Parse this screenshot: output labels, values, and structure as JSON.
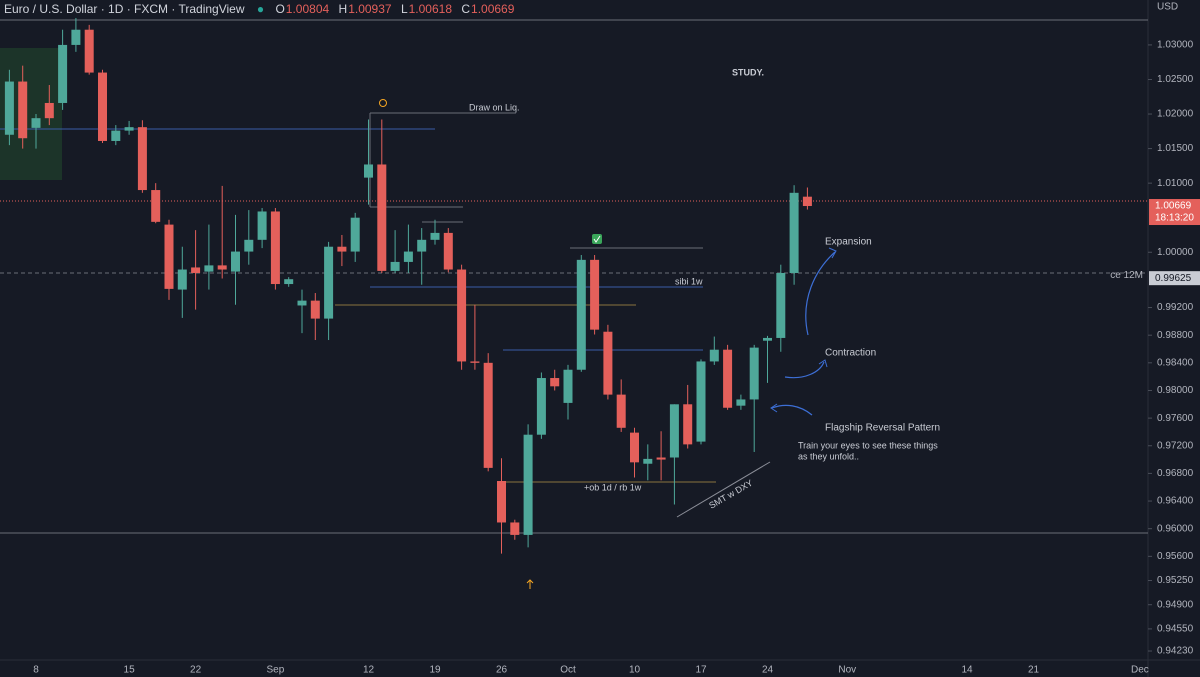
{
  "chart_data": {
    "type": "candlestick",
    "title": "Euro / U.S. Dollar · 1D · FXCM · TradingView",
    "ohlc_labels": [
      "O",
      "H",
      "L",
      "C"
    ],
    "currency": "USD",
    "countdown": "18:13:20",
    "up_color": "#4fa89a",
    "down_color": "#e4605b",
    "categories": [
      null,
      null,
      "8",
      null,
      null,
      null,
      null,
      null,
      null,
      "15",
      null,
      null,
      null,
      null,
      "22",
      null,
      null,
      null,
      null,
      null,
      "Sep",
      null,
      null,
      null,
      null,
      null,
      null,
      "12",
      null,
      null,
      null,
      null,
      "19",
      null,
      null,
      null,
      null,
      "26",
      null,
      null,
      null,
      null,
      "Oct",
      null,
      null,
      null,
      null,
      "10",
      null,
      null,
      null,
      null,
      "17",
      null,
      null,
      null,
      null,
      "24",
      null,
      null,
      null,
      null,
      null,
      "Nov",
      null,
      null,
      null,
      null,
      null,
      null,
      null,
      null,
      "14",
      null,
      null,
      null,
      null,
      "21",
      null,
      null,
      null,
      null,
      null,
      null,
      null,
      "Dec"
    ],
    "open": [
      1.017,
      1.0247,
      1.018,
      1.0216,
      1.0216,
      1.03,
      1.0322,
      1.026,
      1.0161,
      1.0176,
      1.0181,
      1.009,
      1.004,
      0.9946,
      0.9978,
      0.9972,
      0.9981,
      0.9972,
      1.0001,
      1.0018,
      1.0059,
      0.9954,
      0.9923,
      0.993,
      0.9904,
      1.0008,
      1.0001,
      1.0108,
      1.0127,
      0.9973,
      0.9986,
      1.0001,
      1.0018,
      1.0028,
      0.9975,
      0.9842,
      0.984,
      0.9669,
      0.9609,
      0.9591,
      0.9736,
      0.9818,
      0.9782,
      0.983,
      0.9989,
      0.9885,
      0.9794,
      0.9739,
      0.9694,
      0.9703,
      0.9703,
      0.978,
      0.9726,
      0.9842,
      0.9859,
      0.9778,
      0.9787,
      0.9872,
      0.9876,
      0.997,
      1.00804,
      null,
      null,
      null,
      null,
      null,
      null,
      null,
      null,
      null,
      null,
      null,
      null,
      null,
      null,
      null,
      null,
      null,
      null,
      null,
      null,
      null,
      null,
      null,
      null,
      null
    ],
    "high": [
      1.0264,
      1.027,
      1.02,
      1.0242,
      1.0322,
      1.0339,
      1.0329,
      1.0264,
      1.0184,
      1.019,
      1.0191,
      1.01,
      1.0047,
      1.0008,
      1.0032,
      1.004,
      1.0096,
      1.0054,
      1.0061,
      1.0064,
      1.0064,
      0.9964,
      0.9946,
      0.9941,
      1.0015,
      1.0025,
      1.0057,
      1.0192,
      1.0192,
      1.0032,
      1.004,
      1.0035,
      1.0047,
      1.0035,
      0.9982,
      0.9924,
      0.9854,
      0.9702,
      0.9613,
      0.9751,
      0.9826,
      0.983,
      0.9837,
      0.9996,
      0.9996,
      0.9895,
      0.9816,
      0.9746,
      0.9722,
      0.9741,
      0.978,
      0.9808,
      0.9845,
      0.9878,
      0.9866,
      0.9794,
      0.9866,
      0.9879,
      0.9982,
      1.0097,
      1.00937,
      null,
      null,
      null,
      null,
      null,
      null,
      null,
      null,
      null,
      null,
      null,
      null,
      null,
      null,
      null,
      null,
      null,
      null,
      null,
      null,
      null,
      null,
      null,
      null,
      null
    ],
    "low": [
      1.0155,
      1.015,
      1.015,
      1.0184,
      1.0206,
      1.029,
      1.0257,
      1.0158,
      1.0155,
      1.017,
      1.0086,
      1.0042,
      0.9931,
      0.9905,
      0.9917,
      0.9946,
      0.9962,
      0.9924,
      0.9982,
      1.0006,
      0.9946,
      0.995,
      0.9883,
      0.9873,
      0.9873,
      0.998,
      0.9986,
      1.0069,
      0.997,
      0.997,
      0.997,
      0.9953,
      1.0011,
      0.9971,
      0.983,
      0.983,
      0.9683,
      0.9564,
      0.9584,
      0.9573,
      0.973,
      0.98,
      0.9758,
      0.9827,
      0.9881,
      0.9787,
      0.974,
      0.9674,
      0.967,
      0.967,
      0.9635,
      0.9716,
      0.9722,
      0.9837,
      0.9772,
      0.9772,
      0.9711,
      0.9811,
      0.9856,
      0.9953,
      1.00618,
      null,
      null,
      null,
      null,
      null,
      null,
      null,
      null,
      null,
      null,
      null,
      null,
      null,
      null,
      null,
      null,
      null,
      null,
      null,
      null,
      null,
      null,
      null,
      null,
      null
    ],
    "close": [
      1.0247,
      1.0165,
      1.0194,
      1.0194,
      1.03,
      1.0322,
      1.026,
      1.0161,
      1.0176,
      1.0181,
      1.009,
      1.0044,
      0.9947,
      0.9975,
      0.997,
      0.9981,
      0.9975,
      1.0001,
      1.0018,
      1.0059,
      0.9954,
      0.9961,
      0.993,
      0.9904,
      1.0008,
      1.0001,
      1.005,
      1.0127,
      0.9973,
      0.9986,
      1.0001,
      1.0018,
      1.0028,
      0.9975,
      0.9842,
      0.984,
      0.9688,
      0.9609,
      0.9591,
      0.9736,
      0.9818,
      0.9806,
      0.983,
      0.9989,
      0.9888,
      0.9794,
      0.9746,
      0.9696,
      0.9701,
      0.97,
      0.978,
      0.9722,
      0.9842,
      0.9859,
      0.9775,
      0.9787,
      0.9862,
      0.9876,
      0.997,
      1.0086,
      1.00669,
      null,
      null,
      null,
      null,
      null,
      null,
      null,
      null,
      null,
      null,
      null,
      null,
      null,
      null,
      null,
      null,
      null,
      null,
      null,
      null,
      null,
      null,
      null,
      null,
      null
    ],
    "ylim": [
      0.941,
      1.0365
    ],
    "yticks": [
      {
        "value": 1.03,
        "label": "1.03000"
      },
      {
        "value": 1.025,
        "label": "1.02500"
      },
      {
        "value": 1.02,
        "label": "1.02000"
      },
      {
        "value": 1.015,
        "label": "1.01500"
      },
      {
        "value": 1.01,
        "label": "1.01000"
      },
      {
        "value": 1.0,
        "label": "1.00000"
      },
      {
        "value": 0.992,
        "label": "0.99200"
      },
      {
        "value": 0.988,
        "label": "0.98800"
      },
      {
        "value": 0.984,
        "label": "0.98400"
      },
      {
        "value": 0.98,
        "label": "0.98000"
      },
      {
        "value": 0.976,
        "label": "0.97600"
      },
      {
        "value": 0.972,
        "label": "0.97200"
      },
      {
        "value": 0.968,
        "label": "0.96800"
      },
      {
        "value": 0.964,
        "label": "0.96400"
      },
      {
        "value": 0.96,
        "label": "0.96000"
      },
      {
        "value": 0.956,
        "label": "0.95600"
      },
      {
        "value": 0.9525,
        "label": "0.95250"
      },
      {
        "value": 0.949,
        "label": "0.94900"
      },
      {
        "value": 0.9455,
        "label": "0.94550"
      },
      {
        "value": 0.9423,
        "label": "0.94230"
      }
    ],
    "level": {
      "name": "ce 12M",
      "value": 0.99625
    },
    "annotations": [
      "STUDY.",
      "Draw on Liq.",
      "sibi 1w",
      "+ob 1d / rb 1w",
      "SMT w DXY",
      "Expansion",
      "Contraction",
      "Flagship Reversal Pattern",
      "Train your eyes to see these things",
      "as they unfold.."
    ]
  }
}
